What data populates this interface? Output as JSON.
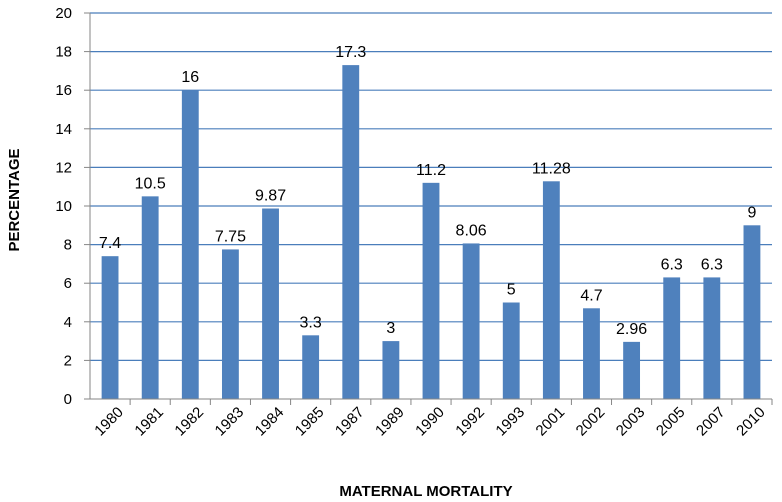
{
  "chart_data": {
    "type": "bar",
    "title": "",
    "xlabel": "MATERNAL MORTALITY",
    "ylabel": "PERCENTAGE",
    "ylim": [
      0,
      20
    ],
    "yticks": [
      0,
      2,
      4,
      6,
      8,
      10,
      12,
      14,
      16,
      18,
      20
    ],
    "grid": true,
    "legend": "none",
    "bar_color": "#4F81BD",
    "grid_color": "#4A7EBB",
    "categories": [
      "1980",
      "1981",
      "1982",
      "1983",
      "1984",
      "1985",
      "1987",
      "1989",
      "1990",
      "1992",
      "1993",
      "2001",
      "2002",
      "2003",
      "2005",
      "2007",
      "2010"
    ],
    "values": [
      7.4,
      10.5,
      16,
      7.75,
      9.87,
      3.3,
      17.3,
      3,
      11.2,
      8.06,
      5,
      11.28,
      4.7,
      2.96,
      6.3,
      6.3,
      9
    ],
    "data_labels": [
      "7.4",
      "10.5",
      "16",
      "7.75",
      "9.87",
      "3.3",
      "17.3",
      "3",
      "11.2",
      "8.06",
      "5",
      "11.28",
      "4.7",
      "2.96",
      "6.3",
      "6.3",
      "9"
    ]
  }
}
